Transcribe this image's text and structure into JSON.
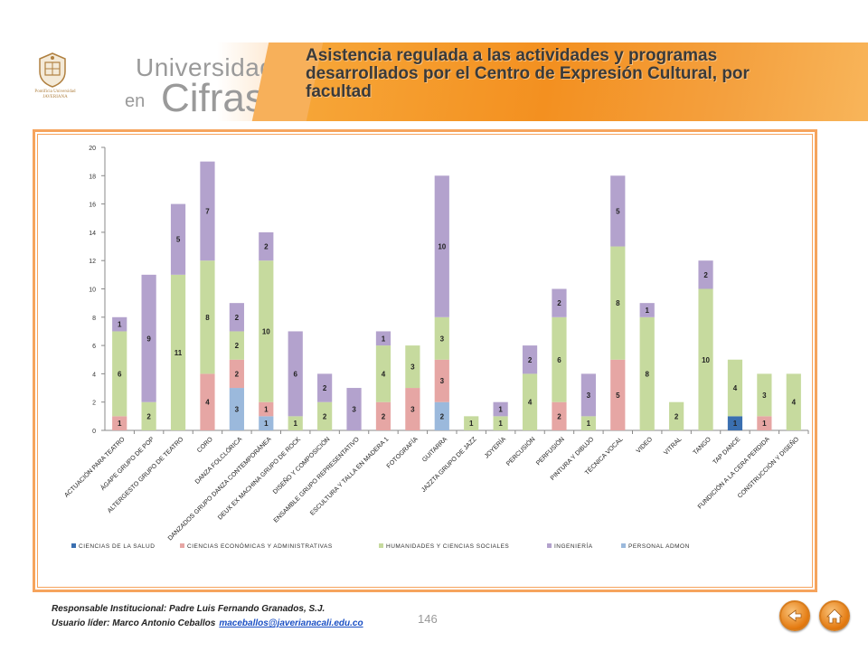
{
  "header": {
    "brand_top": "Universidad",
    "brand_en": "en",
    "brand_cifras": "Cifras",
    "crest_caption": "Pontificia Universidad JAVERIANA",
    "title": "Asistencia regulada a las actividades y programas desarrollados por el Centro de Expresión Cultural, por facultad"
  },
  "footer": {
    "responsable": "Responsable Institucional: Padre Luis Fernando Granados, S.J.",
    "usuario": "Usuario líder: Marco Antonio Ceballos",
    "email": "maceballos@javerianacali.edu.co",
    "page_number": "146"
  },
  "nav": {
    "back_icon": "back-arrow-icon",
    "home_icon": "home-icon"
  },
  "chart_data": {
    "type": "bar",
    "stacked": true,
    "ylim": [
      0,
      20
    ],
    "yticks": [
      0,
      2,
      4,
      6,
      8,
      10,
      12,
      14,
      16,
      18,
      20
    ],
    "grid": false,
    "legend_position": "bottom",
    "categories": [
      "ACTUACIÓN PARA TEATRO",
      "ÁGAPE GRUPO DE POP",
      "ALTERGESTO GRUPO DE TEATRO",
      "CORO",
      "DANZA FOLCLÓRICA",
      "DANZADOS GRUPO DANZA CONTEMPORÁNEA",
      "DEUX EX MACHINA GRUPO DE ROCK",
      "DISEÑO Y COMPOSICIÓN",
      "ENSAMBLE GRUPO REPRESENTATIVO",
      "ESCULTURA Y TALLA EN MADERA 1",
      "FOTOGRAFÍA",
      "GUITARRA",
      "JAZZTA GRUPO DE JAZZ",
      "JOYERÍA",
      "PERCUSIÓN",
      "PERFUSIÓN",
      "PINTURA Y DIBUJO",
      "TÉCNICA VOCAL",
      "VIDEO",
      "VITRAL",
      "TANGO",
      "TAP DANCE",
      "FUNDICIÓN A LA CERA PERDIDA",
      "CONSTRUCCIÓN Y DISEÑO"
    ],
    "series": [
      {
        "name": "CIENCIAS DE LA SALUD",
        "color": "#3a6fb0",
        "values": [
          0,
          0,
          0,
          0,
          0,
          0,
          0,
          0,
          0,
          0,
          0,
          0,
          0,
          0,
          0,
          0,
          0,
          0,
          0,
          0,
          0,
          1,
          0,
          0
        ]
      },
      {
        "name": "CIENCIAS ECONÓMICAS Y ADMINISTRATIVAS",
        "color": "#e6a6a4",
        "values": [
          1,
          0,
          0,
          4,
          2,
          1,
          0,
          0,
          0,
          2,
          3,
          3,
          0,
          0,
          0,
          2,
          0,
          5,
          0,
          0,
          0,
          0,
          1,
          0
        ]
      },
      {
        "name": "HUMANIDADES Y CIENCIAS SOCIALES",
        "color": "#c6da9e",
        "values": [
          6,
          2,
          11,
          8,
          2,
          10,
          1,
          2,
          0,
          4,
          3,
          3,
          1,
          1,
          4,
          6,
          1,
          8,
          8,
          2,
          10,
          4,
          3,
          4
        ]
      },
      {
        "name": "INGENIERÍA",
        "color": "#b3a2cd",
        "values": [
          1,
          9,
          5,
          7,
          2,
          2,
          6,
          2,
          3,
          1,
          0,
          10,
          0,
          1,
          2,
          2,
          3,
          5,
          1,
          0,
          2,
          0,
          0,
          0
        ]
      },
      {
        "name": "PERSONAL ADMON",
        "color": "#9bb9dc",
        "values": [
          0,
          0,
          0,
          0,
          3,
          1,
          0,
          0,
          0,
          0,
          0,
          2,
          0,
          0,
          0,
          0,
          0,
          0,
          0,
          0,
          0,
          0,
          0,
          0
        ]
      }
    ],
    "stack_order": [
      "PERSONAL ADMON",
      "CIENCIAS DE LA SALUD",
      "CIENCIAS ECONÓMICAS Y ADMINISTRATIVAS",
      "HUMANIDADES Y CIENCIAS SOCIALES",
      "INGENIERÍA"
    ]
  }
}
